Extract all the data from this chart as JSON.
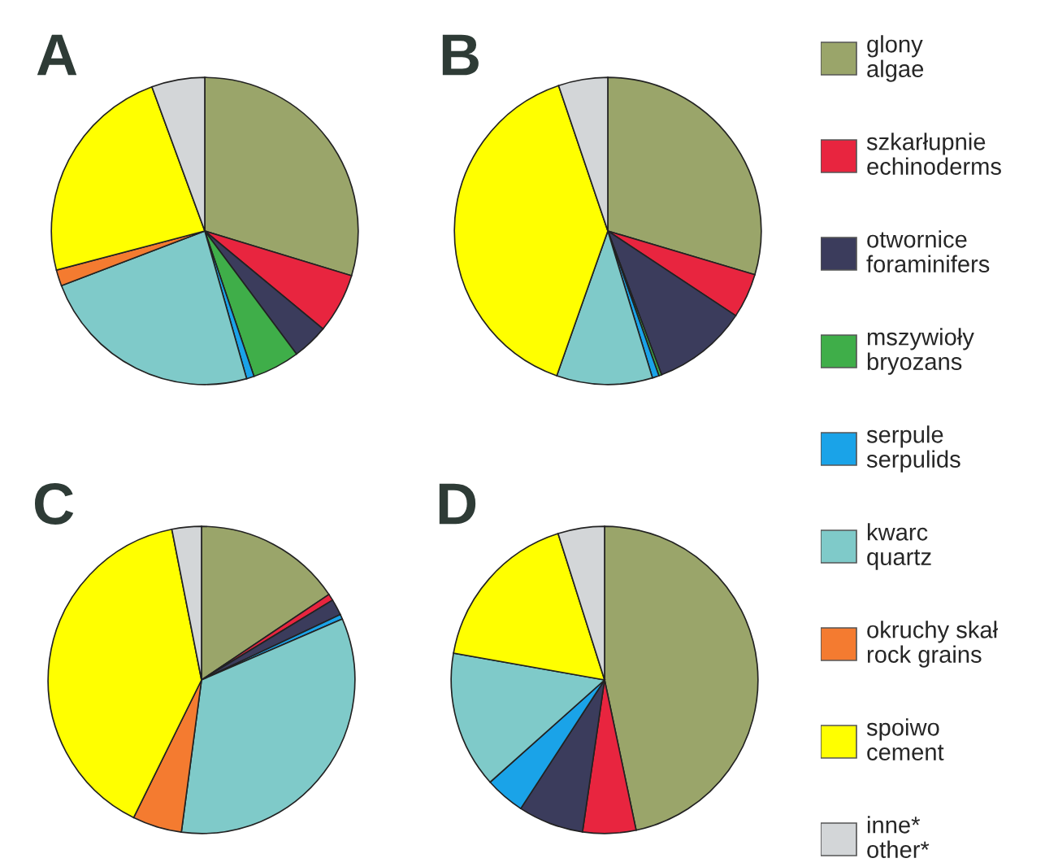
{
  "chart_data": [
    {
      "type": "pie",
      "title": "A",
      "legend": "right",
      "categories": [
        "glony\nalgae",
        "szkarłupnie\nechinoderms",
        "otwornice\nforaminifers",
        "mszywioły\nbryozans",
        "serpule\nserpulids",
        "kwarc\nquartz",
        "okruchy skał\nrock grains",
        "spoiwo\ncement",
        "inne*\nother*"
      ],
      "values": [
        29.7,
        6.3,
        3.8,
        5.0,
        0.8,
        23.6,
        1.7,
        23.5,
        5.6
      ],
      "colors": [
        "#9aa56a",
        "#e8253f",
        "#3b3c5c",
        "#3fae49",
        "#1aa3e8",
        "#7fcac9",
        "#f47b30",
        "#ffff00",
        "#d3d6d8"
      ]
    },
    {
      "type": "pie",
      "title": "B",
      "categories": [
        null,
        null,
        null,
        null,
        null,
        null,
        null,
        null,
        null
      ],
      "values": [
        29.6,
        4.7,
        10.0,
        0.3,
        0.7,
        10.1,
        0,
        39.4,
        5.2
      ],
      "colors": [
        "#9aa56a",
        "#e8253f",
        "#3b3c5c",
        "#3fae49",
        "#1aa3e8",
        "#7fcac9",
        "#f47b30",
        "#ffff00",
        "#d3d6d8"
      ]
    },
    {
      "type": "pie",
      "title": "C",
      "categories": [
        null,
        null,
        null,
        null,
        null,
        null,
        null,
        null,
        null
      ],
      "values": [
        15.6,
        0.7,
        1.7,
        0,
        0.5,
        33.6,
        5.2,
        39.6,
        3.1
      ],
      "colors": [
        "#9aa56a",
        "#e8253f",
        "#3b3c5c",
        "#3fae49",
        "#1aa3e8",
        "#7fcac9",
        "#f47b30",
        "#ffff00",
        "#d3d6d8"
      ]
    },
    {
      "type": "pie",
      "title": "D",
      "categories": [
        null,
        null,
        null,
        null,
        null,
        null,
        null,
        null,
        null
      ],
      "values": [
        46.7,
        5.6,
        6.9,
        0,
        4.2,
        14.4,
        0,
        17.3,
        4.9
      ],
      "colors": [
        "#9aa56a",
        "#e8253f",
        "#3b3c5c",
        "#3fae49",
        "#1aa3e8",
        "#7fcac9",
        "#f47b30",
        "#ffff00",
        "#d3d6d8"
      ]
    }
  ]
}
